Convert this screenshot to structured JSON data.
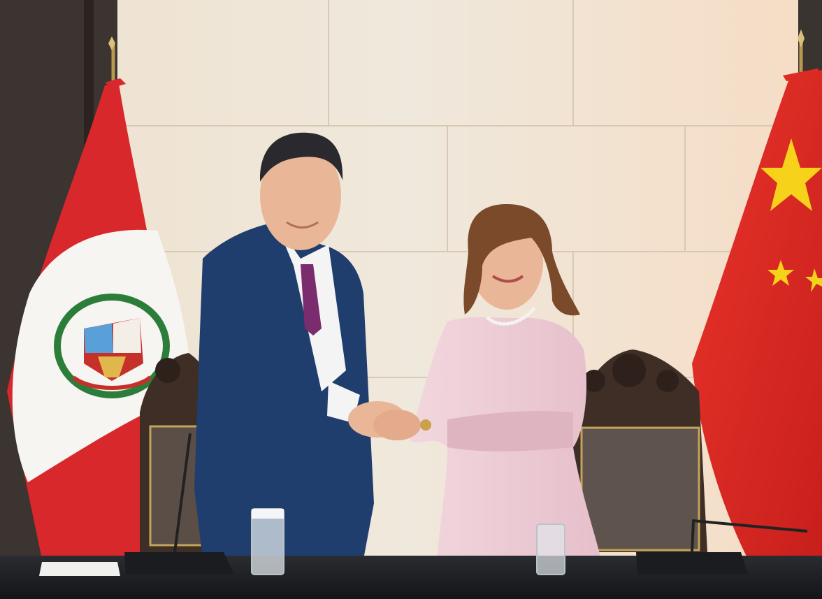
{
  "scene": {
    "description_label": "",
    "colors": {
      "wall": "#efe6d8",
      "wall_warm": "#f6e2c9",
      "panel_dark": "#3b3431",
      "peru_red": "#d9282b",
      "peru_white": "#f7f5f2",
      "china_red": "#e02a22",
      "china_star": "#f7d21a",
      "suit": "#1f3d6d",
      "tie": "#7a2c6e",
      "dress": "#efcdd6",
      "chair_wood": "#3e2e26",
      "table": "#1e2024",
      "skin": "#e9b697",
      "hair_dark": "#2a2a2e",
      "hair_brown": "#7a4a2a"
    },
    "icons": {
      "left_flag": "peru-flag-icon",
      "right_flag": "china-flag-icon"
    }
  }
}
